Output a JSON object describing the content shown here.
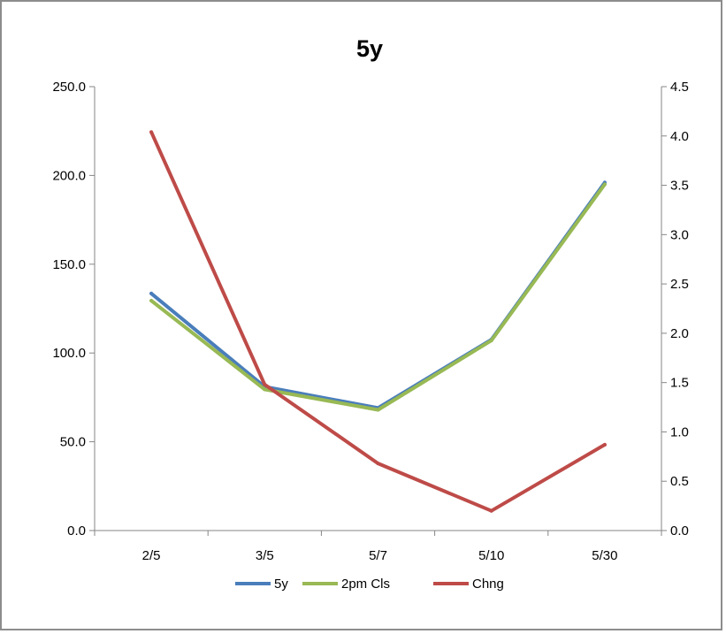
{
  "chart_data": {
    "type": "line",
    "title": "5y",
    "categories": [
      "2/5",
      "3/5",
      "5/7",
      "5/10",
      "5/30"
    ],
    "y_left": {
      "ticks": [
        "0.0",
        "50.0",
        "100.0",
        "150.0",
        "200.0",
        "250.0"
      ],
      "range": [
        0,
        250
      ]
    },
    "y_right": {
      "ticks": [
        "0.0",
        "0.5",
        "1.0",
        "1.5",
        "2.0",
        "2.5",
        "3.0",
        "3.5",
        "4.0",
        "4.5"
      ],
      "range": [
        0,
        4.5
      ]
    },
    "series": [
      {
        "name": "5y",
        "axis": "left",
        "color": "#4a7ebb",
        "values": [
          133.5,
          81.0,
          69.0,
          107.5,
          196.0
        ]
      },
      {
        "name": "2pm Cls",
        "axis": "left",
        "color": "#98b954",
        "values": [
          129.5,
          79.5,
          68.0,
          107.0,
          195.0
        ]
      },
      {
        "name": "Chng",
        "axis": "right",
        "color": "#be4b48",
        "values": [
          4.04,
          1.48,
          0.68,
          0.2,
          0.87
        ]
      }
    ],
    "legend_position": "bottom",
    "grid": false
  }
}
